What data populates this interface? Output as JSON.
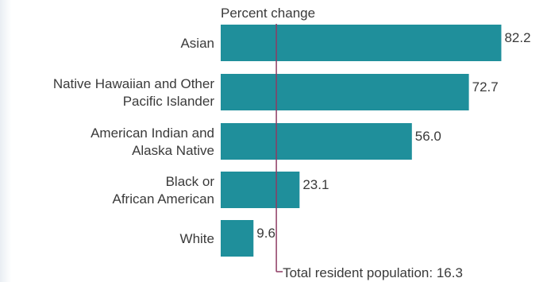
{
  "chart_data": {
    "type": "bar",
    "orientation": "horizontal",
    "xlabel": "Percent change",
    "categories": [
      [
        "Asian"
      ],
      [
        "Native Hawaiian and Other",
        "Pacific Islander"
      ],
      [
        "American Indian and",
        "Alaska Native"
      ],
      [
        "Black or",
        "African American"
      ],
      [
        "White"
      ]
    ],
    "values": [
      82.2,
      72.7,
      56.0,
      23.1,
      9.6
    ],
    "value_labels": [
      "82.2",
      "72.7",
      "56.0",
      "23.1",
      "9.6"
    ],
    "xlim": [
      0,
      90
    ],
    "reference_line": {
      "value": 16.3,
      "label": "Total resident population: 16.3",
      "color": "#8e3b63"
    },
    "bar_color": "#1f8f9b",
    "grid": false,
    "legend": "none"
  }
}
